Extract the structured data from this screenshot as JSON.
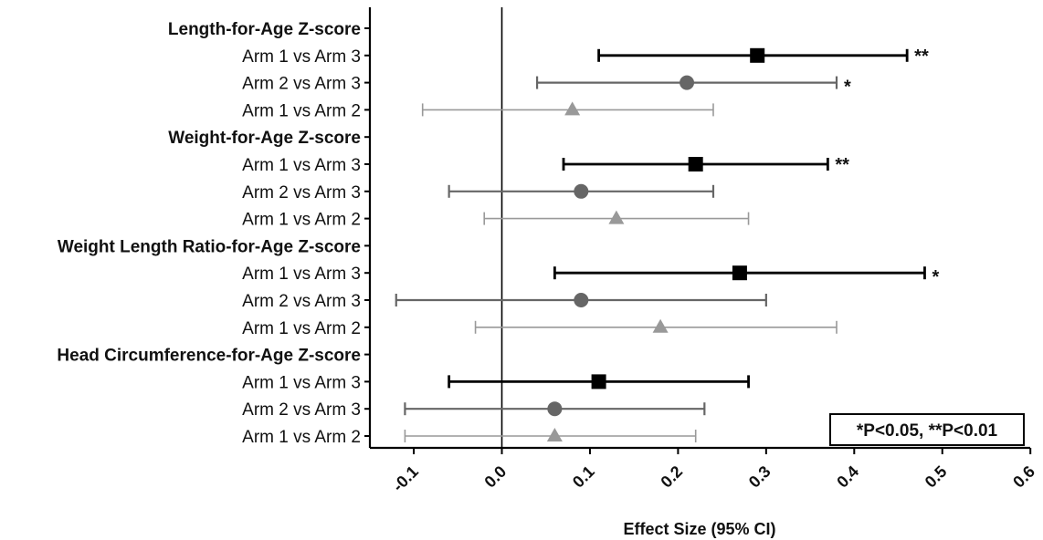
{
  "chart_data": {
    "type": "forest",
    "xlabel": "Effect Size (95% CI)",
    "xlim": [
      -0.15,
      0.6
    ],
    "x_ticks": [
      "-0.1",
      "0.0",
      "0.1",
      "0.2",
      "0.3",
      "0.4",
      "0.5",
      "0.6"
    ],
    "x_tick_values": [
      -0.1,
      0.0,
      0.1,
      0.2,
      0.3,
      0.4,
      0.5,
      0.6
    ],
    "legend_note": "*P<0.05, **P<0.01",
    "comparison_styles": {
      "Arm 1 vs Arm 3": {
        "marker": "square",
        "color": "#000000"
      },
      "Arm 2 vs Arm 3": {
        "marker": "circle",
        "color": "#666666"
      },
      "Arm 1 vs Arm 2": {
        "marker": "triangle",
        "color": "#999999"
      }
    },
    "groups": [
      {
        "title": "Length-for-Age Z-score",
        "rows": [
          {
            "label": "Arm 1 vs Arm 3",
            "estimate": 0.29,
            "lower": 0.11,
            "upper": 0.46,
            "sig": "**"
          },
          {
            "label": "Arm 2 vs Arm 3",
            "estimate": 0.21,
            "lower": 0.04,
            "upper": 0.38,
            "sig": "*"
          },
          {
            "label": "Arm 1 vs Arm 2",
            "estimate": 0.08,
            "lower": -0.09,
            "upper": 0.24,
            "sig": ""
          }
        ]
      },
      {
        "title": "Weight-for-Age Z-score",
        "rows": [
          {
            "label": "Arm 1 vs Arm 3",
            "estimate": 0.22,
            "lower": 0.07,
            "upper": 0.37,
            "sig": "**"
          },
          {
            "label": "Arm 2 vs Arm 3",
            "estimate": 0.09,
            "lower": -0.06,
            "upper": 0.24,
            "sig": ""
          },
          {
            "label": "Arm 1 vs Arm 2",
            "estimate": 0.13,
            "lower": -0.02,
            "upper": 0.28,
            "sig": ""
          }
        ]
      },
      {
        "title": "Weight Length Ratio-for-Age Z-score",
        "rows": [
          {
            "label": "Arm 1 vs Arm 3",
            "estimate": 0.27,
            "lower": 0.06,
            "upper": 0.48,
            "sig": "*"
          },
          {
            "label": "Arm 2 vs Arm 3",
            "estimate": 0.09,
            "lower": -0.12,
            "upper": 0.3,
            "sig": ""
          },
          {
            "label": "Arm 1 vs Arm 2",
            "estimate": 0.18,
            "lower": -0.03,
            "upper": 0.38,
            "sig": ""
          }
        ]
      },
      {
        "title": "Head Circumference-for-Age Z-score",
        "rows": [
          {
            "label": "Arm 1 vs Arm 3",
            "estimate": 0.11,
            "lower": -0.06,
            "upper": 0.28,
            "sig": ""
          },
          {
            "label": "Arm 2 vs Arm 3",
            "estimate": 0.06,
            "lower": -0.11,
            "upper": 0.23,
            "sig": ""
          },
          {
            "label": "Arm 1 vs Arm 2",
            "estimate": 0.06,
            "lower": -0.11,
            "upper": 0.22,
            "sig": ""
          }
        ]
      }
    ]
  }
}
